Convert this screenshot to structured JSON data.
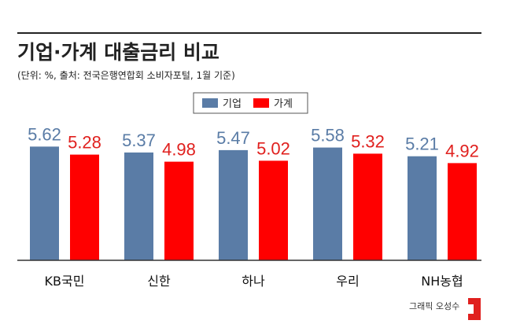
{
  "header": {
    "title": "기업·가계 대출금리 비교",
    "subtitle": "(단위: %, 출처: 전국은행연합회 소비자포털, 1월 기준)"
  },
  "footer": {
    "credit": "그래픽 오성수",
    "logo_icon": "red-square-bracket-logo"
  },
  "chart_data": {
    "type": "bar",
    "categories": [
      "KB국민",
      "신한",
      "하나",
      "우리",
      "NH농협"
    ],
    "series": [
      {
        "name": "기업",
        "values": [
          5.62,
          5.37,
          5.47,
          5.58,
          5.21
        ],
        "color": "#5a7ca6",
        "label_color": "#5a7ca6"
      },
      {
        "name": "가계",
        "values": [
          5.28,
          4.98,
          5.02,
          5.32,
          4.92
        ],
        "color": "#ff0000",
        "label_color": "#e0201e"
      }
    ],
    "value_labels": [
      [
        "5.62",
        "5.37",
        "5.47",
        "5.58",
        "5.21"
      ],
      [
        "5.28",
        "4.98",
        "5.02",
        "5.32",
        "4.92"
      ]
    ],
    "legend_position": "top-center",
    "grid": false,
    "baseline_color": "#333333"
  }
}
